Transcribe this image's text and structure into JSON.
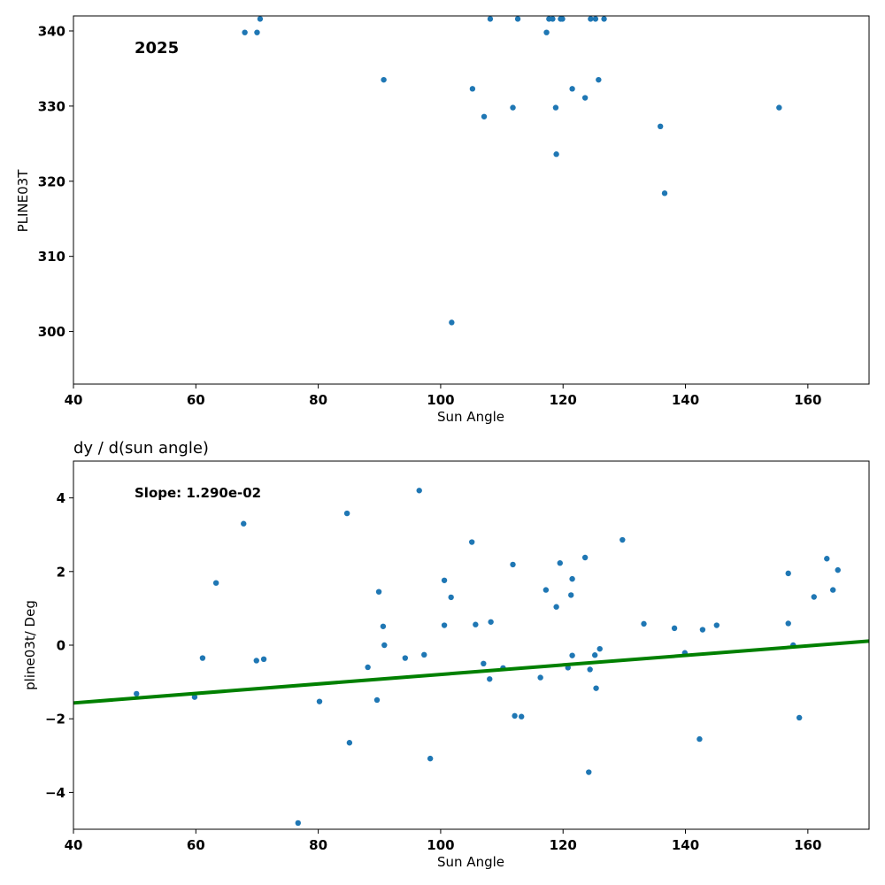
{
  "colors": {
    "point": "#1f77b4",
    "fit_line": "#008000",
    "axes": "#000000",
    "background": "#ffffff"
  },
  "chart_data": [
    {
      "type": "scatter",
      "title": "",
      "annotation": "2025",
      "xlabel": "Sun Angle",
      "ylabel": "PLINE03T",
      "xlim": [
        40,
        170
      ],
      "ylim": [
        293,
        342
      ],
      "xticks": [
        40,
        60,
        80,
        100,
        120,
        140,
        160
      ],
      "yticks": [
        300,
        310,
        320,
        330,
        340
      ],
      "grid": false,
      "series": [
        {
          "points": [
            [
              68.0,
              339.8
            ],
            [
              70.0,
              339.8
            ],
            [
              70.5,
              341.6
            ],
            [
              90.7,
              333.5
            ],
            [
              101.8,
              301.2
            ],
            [
              105.2,
              332.3
            ],
            [
              107.1,
              328.6
            ],
            [
              108.1,
              341.6
            ],
            [
              111.8,
              329.8
            ],
            [
              112.6,
              341.6
            ],
            [
              117.3,
              339.8
            ],
            [
              117.7,
              341.6
            ],
            [
              118.3,
              341.6
            ],
            [
              118.8,
              329.8
            ],
            [
              118.9,
              323.6
            ],
            [
              119.6,
              341.6
            ],
            [
              119.9,
              341.6
            ],
            [
              121.5,
              332.3
            ],
            [
              123.6,
              331.1
            ],
            [
              124.5,
              341.6
            ],
            [
              125.3,
              341.6
            ],
            [
              125.8,
              333.5
            ],
            [
              126.7,
              341.6
            ],
            [
              135.9,
              327.3
            ],
            [
              136.6,
              318.4
            ],
            [
              155.3,
              329.8
            ]
          ]
        }
      ]
    },
    {
      "type": "scatter",
      "title": "dy / d(sun angle)",
      "annotation": "Slope: 1.290e-02",
      "xlabel": "Sun Angle",
      "ylabel": "pline03t/ Deg",
      "xlim": [
        40,
        170
      ],
      "ylim": [
        -5,
        5
      ],
      "xticks": [
        40,
        60,
        80,
        100,
        120,
        140,
        160
      ],
      "yticks": [
        -4,
        -2,
        0,
        2,
        4
      ],
      "grid": false,
      "series": [
        {
          "points": [
            [
              50.3,
              -1.32
            ],
            [
              59.8,
              -1.41
            ],
            [
              61.1,
              -0.35
            ],
            [
              63.3,
              1.69
            ],
            [
              67.8,
              3.3
            ],
            [
              69.9,
              -0.42
            ],
            [
              71.1,
              -0.38
            ],
            [
              76.7,
              -4.83
            ],
            [
              80.2,
              -1.53
            ],
            [
              84.7,
              3.58
            ],
            [
              85.1,
              -2.65
            ],
            [
              88.1,
              -0.6
            ],
            [
              89.6,
              -1.49
            ],
            [
              89.9,
              1.45
            ],
            [
              90.6,
              0.51
            ],
            [
              90.8,
              0.0
            ],
            [
              94.2,
              -0.35
            ],
            [
              96.5,
              4.2
            ],
            [
              97.3,
              -0.26
            ],
            [
              98.3,
              -3.08
            ],
            [
              100.6,
              1.76
            ],
            [
              100.6,
              0.54
            ],
            [
              101.7,
              1.3
            ],
            [
              105.1,
              2.8
            ],
            [
              105.7,
              0.56
            ],
            [
              107.0,
              -0.5
            ],
            [
              108.0,
              -0.92
            ],
            [
              108.2,
              0.63
            ],
            [
              110.2,
              -0.62
            ],
            [
              111.8,
              2.19
            ],
            [
              112.1,
              -1.92
            ],
            [
              113.2,
              -1.94
            ],
            [
              116.3,
              -0.88
            ],
            [
              117.2,
              1.5
            ],
            [
              118.9,
              1.04
            ],
            [
              119.5,
              2.23
            ],
            [
              120.8,
              -0.61
            ],
            [
              121.3,
              1.36
            ],
            [
              121.5,
              1.8
            ],
            [
              121.5,
              -0.28
            ],
            [
              123.6,
              2.38
            ],
            [
              124.2,
              -3.45
            ],
            [
              124.4,
              -0.66
            ],
            [
              125.2,
              -0.27
            ],
            [
              125.4,
              -1.17
            ],
            [
              126.0,
              -0.1
            ],
            [
              129.7,
              2.86
            ],
            [
              133.2,
              0.58
            ],
            [
              138.2,
              0.46
            ],
            [
              139.9,
              -0.21
            ],
            [
              142.3,
              -2.55
            ],
            [
              142.8,
              0.42
            ],
            [
              145.1,
              0.54
            ],
            [
              156.8,
              1.95
            ],
            [
              156.8,
              0.59
            ],
            [
              157.6,
              0.0
            ],
            [
              158.6,
              -1.97
            ],
            [
              161.0,
              1.31
            ],
            [
              163.1,
              2.35
            ],
            [
              164.1,
              1.5
            ],
            [
              164.9,
              2.04
            ]
          ]
        },
        {
          "type": "line",
          "points": [
            [
              40,
              -1.57
            ],
            [
              170,
              0.11
            ]
          ]
        }
      ]
    }
  ]
}
